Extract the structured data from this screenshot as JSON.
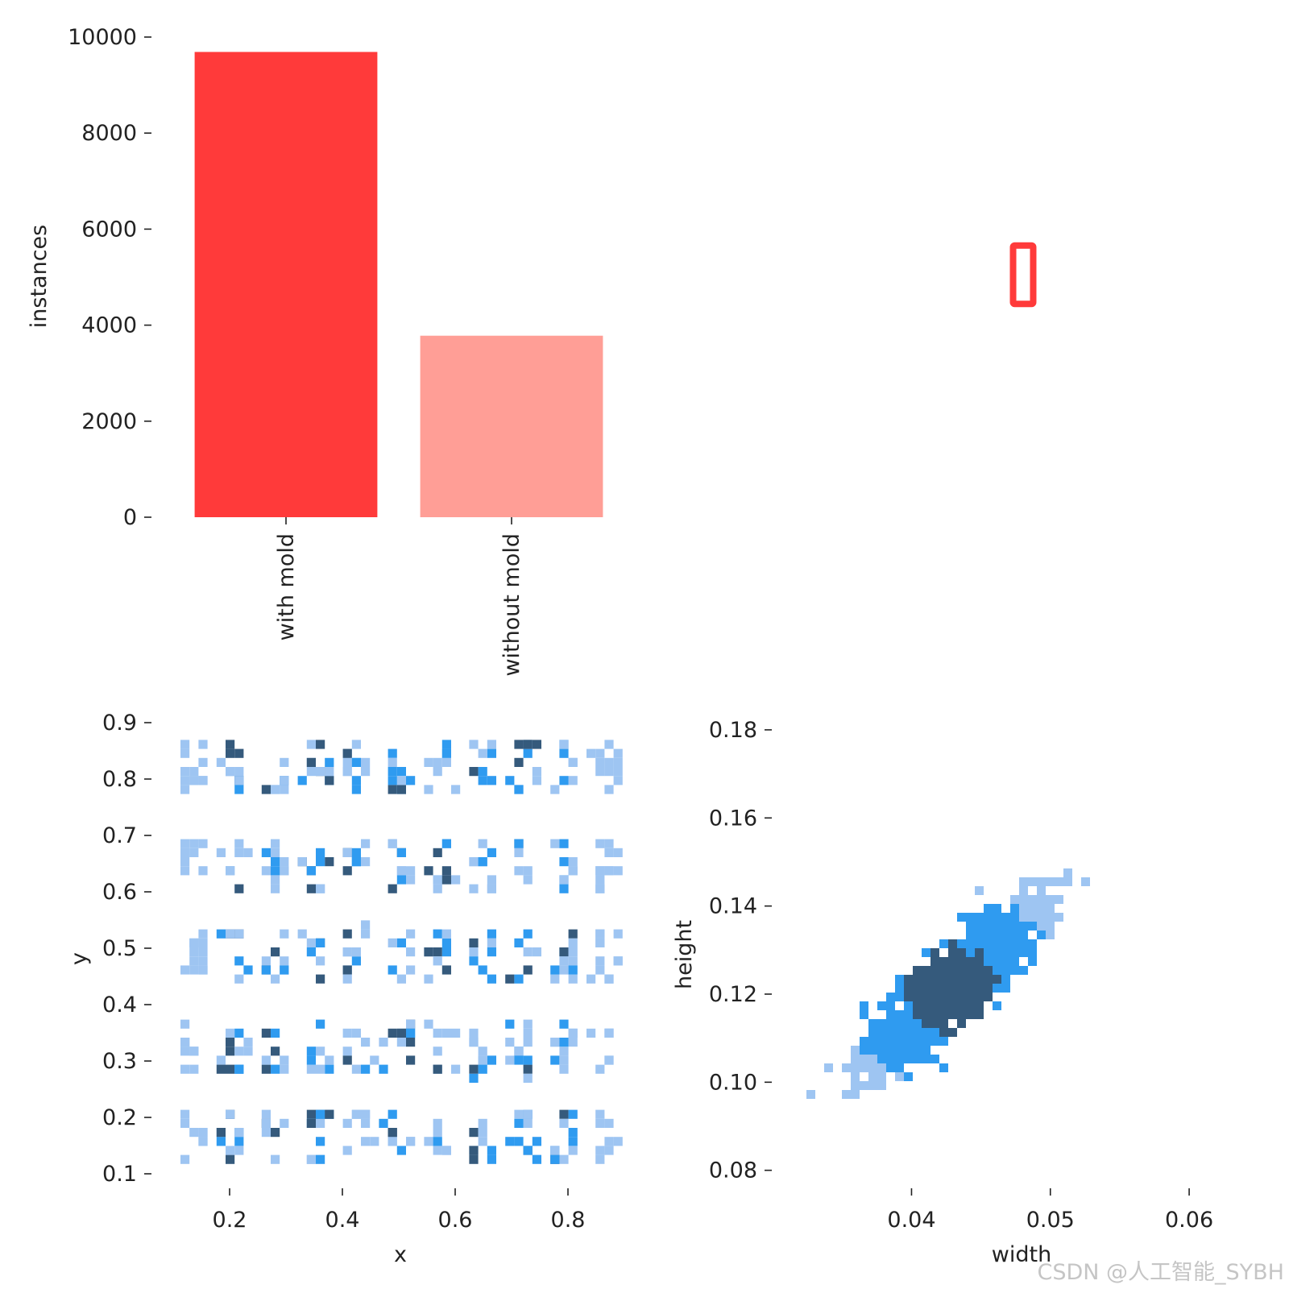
{
  "colors": {
    "bar_with_mold": "#ff3a3a",
    "bar_without_mold": "#ff9e96",
    "heat_low": "#9ec5f2",
    "heat_mid": "#2f9bf0",
    "heat_high": "#355a7c",
    "text": "#222222"
  },
  "watermark": "CSDN @人工智能_SYBH",
  "chart_data": [
    {
      "type": "bar",
      "categories": [
        "with mold",
        "without mold"
      ],
      "values": [
        9690,
        3780
      ],
      "ylabel": "instances",
      "xlabel": "",
      "ylim": [
        0,
        10000
      ],
      "yticks": [
        0,
        2000,
        4000,
        6000,
        8000,
        10000
      ],
      "ytick_labels": [
        "0",
        "2000",
        "4000",
        "6000",
        "8000",
        "10000"
      ],
      "x_tick_rotation": "vertical",
      "grid": false
    },
    {
      "type": "other",
      "description_shape": "bounding-box-overlay",
      "boxes": [
        {
          "cx": 0.5,
          "cy": 0.5,
          "w": 0.048,
          "h": 0.13,
          "color": "#ff3a3a"
        }
      ],
      "xlim": [
        0,
        1
      ],
      "ylim": [
        0,
        1
      ],
      "axis": "off"
    },
    {
      "type": "heatmap",
      "xlabel": "x",
      "ylabel": "y",
      "xlim": [
        0.1,
        0.9
      ],
      "ylim": [
        0.1,
        0.9
      ],
      "xticks": [
        0.2,
        0.4,
        0.6,
        0.8
      ],
      "xtick_labels": [
        "0.2",
        "0.4",
        "0.6",
        "0.8"
      ],
      "yticks": [
        0.1,
        0.2,
        0.3,
        0.4,
        0.5,
        0.6,
        0.7,
        0.8,
        0.9
      ],
      "ytick_labels": [
        "0.1",
        "0.2",
        "0.3",
        "0.4",
        "0.5",
        "0.6",
        "0.7",
        "0.8",
        "0.9"
      ],
      "column_centers": [
        0.127,
        0.2,
        0.273,
        0.347,
        0.42,
        0.493,
        0.567,
        0.64,
        0.713,
        0.787,
        0.86
      ],
      "row_bands": [
        0.175,
        0.33,
        0.495,
        0.655,
        0.83
      ],
      "grid": false
    },
    {
      "type": "heatmap",
      "xlabel": "width",
      "ylabel": "height",
      "xlim": [
        0.0315,
        0.064
      ],
      "ylim": [
        0.075,
        0.182
      ],
      "xticks": [
        0.04,
        0.05,
        0.06
      ],
      "xtick_labels": [
        "0.04",
        "0.05",
        "0.06"
      ],
      "yticks": [
        0.08,
        0.1,
        0.12,
        0.14,
        0.16,
        0.18
      ],
      "ytick_labels": [
        "0.08",
        "0.10",
        "0.12",
        "0.14",
        "0.16",
        "0.18"
      ],
      "density_peak": {
        "width": 0.0425,
        "height": 0.122
      },
      "grid": false
    }
  ]
}
